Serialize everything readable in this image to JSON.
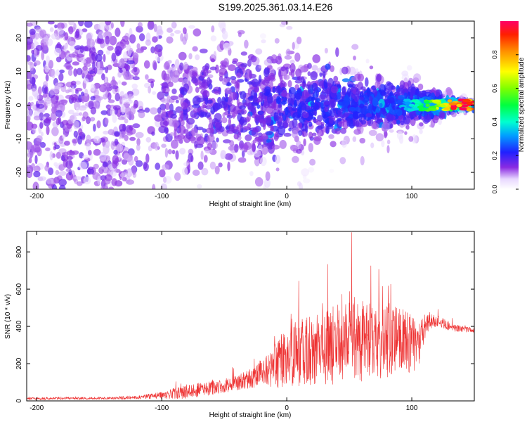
{
  "figure": {
    "title": "S199.2025.361.03.14.E26"
  },
  "chart_data": [
    {
      "type": "heatmap",
      "name": "spectrogram",
      "title": "S199.2025.361.03.14.E26",
      "xlabel": "Height of straight line (km)",
      "ylabel": "Frequency (Hz)",
      "xlim": [
        -208,
        150
      ],
      "ylim": [
        -25,
        25
      ],
      "xticks": [
        -200,
        -100,
        0,
        100
      ],
      "xtick_labels": [
        "-200",
        "-100",
        "0",
        "100"
      ],
      "yticks": [
        -20,
        -10,
        0,
        10,
        20
      ],
      "ytick_labels": [
        "-20",
        "-10",
        "0",
        "10",
        "20"
      ],
      "colorbar": {
        "label": "Normalized spectral amplitude",
        "range": [
          0,
          1
        ],
        "ticks": [
          0.0,
          0.2,
          0.4,
          0.6,
          0.8
        ],
        "tick_labels": [
          "0.0",
          "0.2",
          "0.4",
          "0.6",
          "0.8"
        ],
        "colormap": "rainbow (white-violet-blue-cyan-green-yellow-red)"
      },
      "description_values": {
        "noise_floor_amplitude": 0.05,
        "peak_amplitude_near_x": 140,
        "peak_amplitude": 1.0,
        "band_center_hz": 0
      }
    },
    {
      "type": "line",
      "name": "snr",
      "xlabel": "Height of straight line (km)",
      "ylabel": "SNR (10 * v/v)",
      "xlim": [
        -208,
        150
      ],
      "ylim": [
        0,
        910
      ],
      "xticks": [
        -200,
        -100,
        0,
        100
      ],
      "xtick_labels": [
        "-200",
        "-100",
        "0",
        "100"
      ],
      "yticks": [
        0,
        200,
        400,
        600,
        800
      ],
      "ytick_labels": [
        "0",
        "200",
        "400",
        "600",
        "800"
      ],
      "color": "#ee3333",
      "envelope": {
        "x": [
          -208,
          -150,
          -120,
          -100,
          -80,
          -60,
          -40,
          -25,
          -10,
          0,
          20,
          40,
          55,
          70,
          90,
          105,
          112,
          120,
          135,
          150
        ],
        "mean": [
          12,
          14,
          18,
          30,
          50,
          70,
          95,
          130,
          190,
          230,
          280,
          300,
          320,
          330,
          320,
          300,
          420,
          430,
          390,
          380
        ],
        "spread": [
          10,
          10,
          15,
          30,
          60,
          60,
          60,
          90,
          180,
          260,
          300,
          330,
          340,
          330,
          300,
          200,
          80,
          50,
          30,
          20
        ]
      },
      "peak": {
        "x": 52,
        "y": 905
      }
    }
  ],
  "colors": {
    "line": "#ee3333",
    "frame": "#000000",
    "background": "#ffffff"
  }
}
